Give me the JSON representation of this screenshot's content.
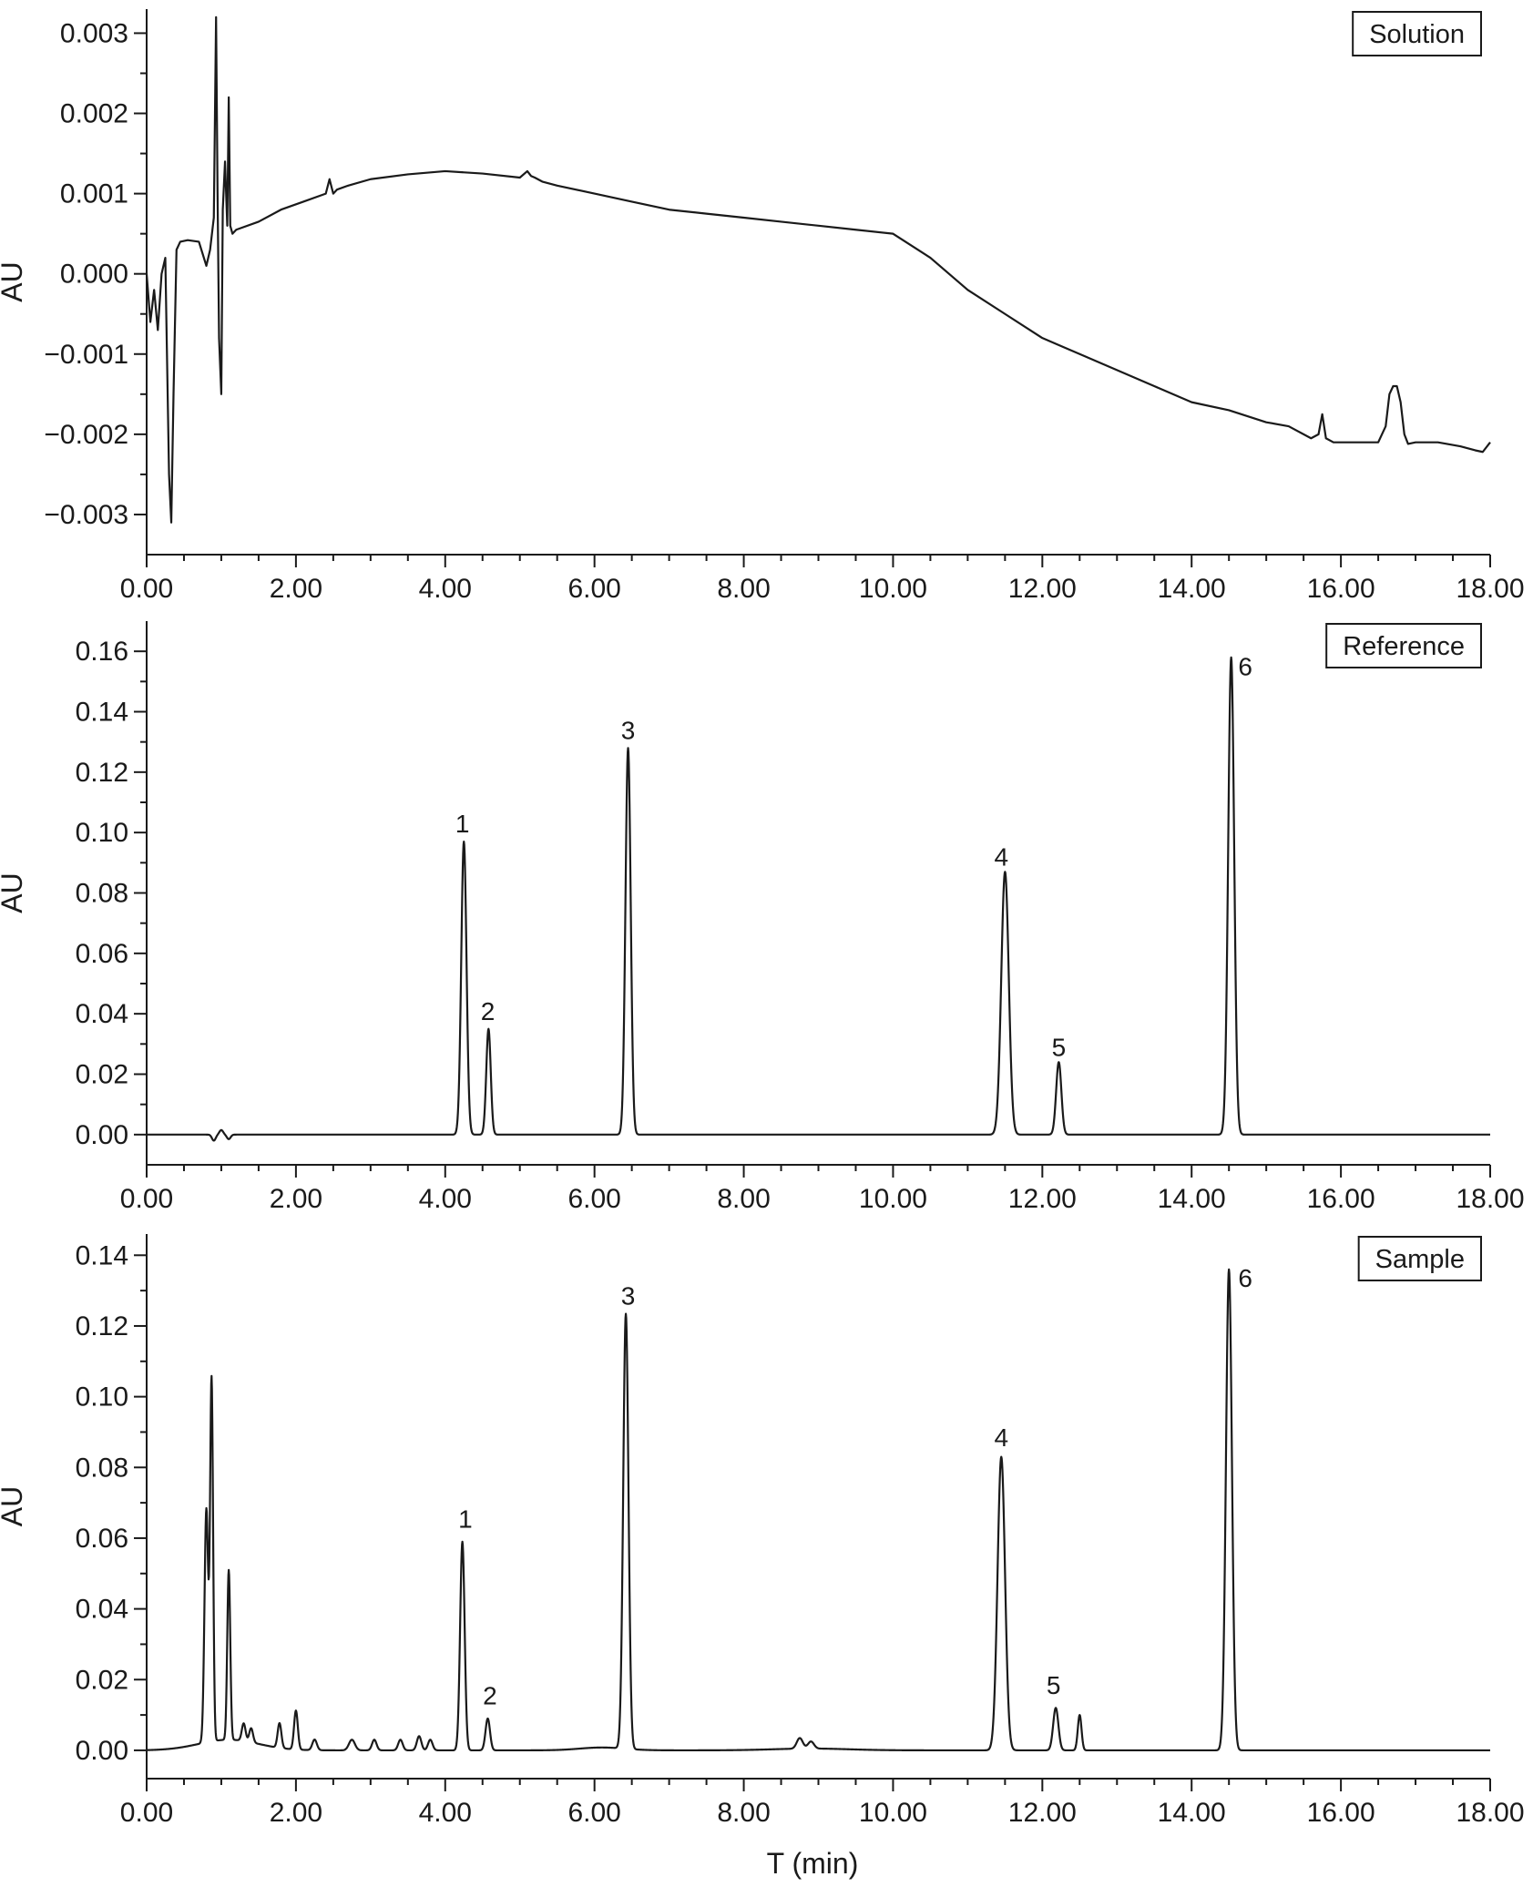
{
  "figure": {
    "xlabel": "T (min)",
    "colors": {
      "trace": "#1a1a1a",
      "axis": "#1a1a1a",
      "background": "#ffffff"
    }
  },
  "chart_data": [
    {
      "type": "line",
      "panel": "Solution",
      "legend": "Solution",
      "legend_position": "top-right",
      "ylabel": "AU",
      "xlim": [
        0,
        18
      ],
      "ylim": [
        -0.0035,
        0.0033
      ],
      "x_ticks": [
        0,
        2,
        4,
        6,
        8,
        10,
        12,
        14,
        16,
        18
      ],
      "x_tick_labels": [
        "0.00",
        "2.00",
        "4.00",
        "6.00",
        "8.00",
        "10.00",
        "12.00",
        "14.00",
        "16.00",
        "18.00"
      ],
      "y_ticks": [
        0.003,
        0.002,
        0.001,
        0.0,
        -0.001,
        -0.002,
        -0.003
      ],
      "y_tick_labels": [
        "0.003",
        "0.002",
        "0.001",
        "0.000",
        "−0.001",
        "−0.002",
        "−0.003"
      ],
      "series": [
        {
          "name": "Solution",
          "x": [
            0.0,
            0.05,
            0.1,
            0.15,
            0.2,
            0.25,
            0.3,
            0.33,
            0.36,
            0.4,
            0.45,
            0.55,
            0.7,
            0.8,
            0.85,
            0.9,
            0.93,
            0.95,
            0.97,
            1.0,
            1.02,
            1.05,
            1.08,
            1.1,
            1.12,
            1.15,
            1.2,
            1.5,
            1.8,
            2.1,
            2.4,
            2.45,
            2.5,
            2.55,
            2.7,
            3.0,
            3.5,
            4.0,
            4.5,
            5.0,
            5.1,
            5.15,
            5.2,
            5.3,
            5.5,
            6.0,
            6.5,
            7.0,
            7.5,
            8.0,
            8.5,
            9.0,
            9.5,
            10.0,
            10.5,
            11.0,
            11.5,
            12.0,
            12.5,
            13.0,
            13.5,
            14.0,
            14.5,
            15.0,
            15.3,
            15.6,
            15.7,
            15.75,
            15.8,
            15.9,
            16.0,
            16.3,
            16.5,
            16.6,
            16.65,
            16.7,
            16.75,
            16.8,
            16.85,
            16.9,
            17.0,
            17.3,
            17.6,
            17.8,
            17.9,
            18.0
          ],
          "y": [
            0.0,
            -0.0006,
            -0.0002,
            -0.0007,
            0.0,
            0.0002,
            -0.0025,
            -0.0031,
            -0.0015,
            0.0003,
            0.0004,
            0.00042,
            0.0004,
            0.0001,
            0.0003,
            0.0007,
            0.0032,
            0.001,
            -0.0008,
            -0.0015,
            0.0008,
            0.0014,
            0.0006,
            0.0022,
            0.0006,
            0.0005,
            0.00055,
            0.00065,
            0.0008,
            0.0009,
            0.001,
            0.00118,
            0.001,
            0.00105,
            0.0011,
            0.00118,
            0.00124,
            0.00128,
            0.00125,
            0.0012,
            0.00128,
            0.00122,
            0.0012,
            0.00115,
            0.0011,
            0.001,
            0.0009,
            0.0008,
            0.00075,
            0.0007,
            0.00065,
            0.0006,
            0.00055,
            0.0005,
            0.0002,
            -0.0002,
            -0.0005,
            -0.0008,
            -0.001,
            -0.0012,
            -0.0014,
            -0.0016,
            -0.0017,
            -0.00185,
            -0.0019,
            -0.00205,
            -0.002,
            -0.00175,
            -0.00205,
            -0.0021,
            -0.0021,
            -0.0021,
            -0.0021,
            -0.0019,
            -0.0015,
            -0.0014,
            -0.0014,
            -0.0016,
            -0.002,
            -0.00212,
            -0.0021,
            -0.0021,
            -0.00215,
            -0.0022,
            -0.00222,
            -0.0021
          ]
        }
      ]
    },
    {
      "type": "line",
      "panel": "Reference",
      "legend": "Reference",
      "legend_position": "top-right",
      "ylabel": "AU",
      "xlim": [
        0,
        18
      ],
      "ylim": [
        -0.01,
        0.17
      ],
      "x_ticks": [
        0,
        2,
        4,
        6,
        8,
        10,
        12,
        14,
        16,
        18
      ],
      "x_tick_labels": [
        "0.00",
        "2.00",
        "4.00",
        "6.00",
        "8.00",
        "10.00",
        "12.00",
        "14.00",
        "16.00",
        "18.00"
      ],
      "y_ticks": [
        0.16,
        0.14,
        0.12,
        0.1,
        0.08,
        0.06,
        0.04,
        0.02,
        0.0
      ],
      "y_tick_labels": [
        "0.16",
        "0.14",
        "0.12",
        "0.10",
        "0.08",
        "0.06",
        "0.04",
        "0.02",
        "0.00"
      ],
      "series": [
        {
          "name": "Reference",
          "baseline": 0.0,
          "ripples": [
            [
              0.9,
              -0.002,
              0.025
            ],
            [
              1.0,
              0.0015,
              0.025
            ],
            [
              1.1,
              -0.0015,
              0.025
            ]
          ],
          "peaks": [
            {
              "label": "1",
              "rt": 4.25,
              "height": 0.097,
              "width": 0.035
            },
            {
              "label": "2",
              "rt": 4.58,
              "height": 0.035,
              "width": 0.03
            },
            {
              "label": "3",
              "rt": 6.45,
              "height": 0.128,
              "width": 0.035
            },
            {
              "label": "4",
              "rt": 11.5,
              "height": 0.087,
              "width": 0.05
            },
            {
              "label": "5",
              "rt": 12.22,
              "height": 0.024,
              "width": 0.035
            },
            {
              "label": "6",
              "rt": 14.53,
              "height": 0.158,
              "width": 0.04
            }
          ]
        }
      ],
      "annotations": [
        {
          "text": "1",
          "x": 4.23,
          "y": 0.1
        },
        {
          "text": "2",
          "x": 4.57,
          "y": 0.038
        },
        {
          "text": "3",
          "x": 6.45,
          "y": 0.131
        },
        {
          "text": "4",
          "x": 11.45,
          "y": 0.089
        },
        {
          "text": "5",
          "x": 12.22,
          "y": 0.026
        },
        {
          "text": "6",
          "x": 14.72,
          "y": 0.152
        }
      ]
    },
    {
      "type": "line",
      "panel": "Sample",
      "legend": "Sample",
      "legend_position": "top-right",
      "ylabel": "AU",
      "xlim": [
        0,
        18
      ],
      "ylim": [
        -0.008,
        0.146
      ],
      "x_ticks": [
        0,
        2,
        4,
        6,
        8,
        10,
        12,
        14,
        16,
        18
      ],
      "x_tick_labels": [
        "0.00",
        "2.00",
        "4.00",
        "6.00",
        "8.00",
        "10.00",
        "12.00",
        "14.00",
        "16.00",
        "18.00"
      ],
      "y_ticks": [
        0.14,
        0.12,
        0.1,
        0.08,
        0.06,
        0.04,
        0.02,
        0.0
      ],
      "y_tick_labels": [
        "0.14",
        "0.12",
        "0.10",
        "0.08",
        "0.06",
        "0.04",
        "0.02",
        "0.00"
      ],
      "series": [
        {
          "name": "Sample",
          "baseline": 0.0,
          "bumps": [
            [
              1.1,
              0.003,
              0.4
            ],
            [
              6.1,
              0.0008,
              0.3
            ],
            [
              8.9,
              0.0005,
              0.5
            ]
          ],
          "peaks": [
            {
              "label": "",
              "rt": 0.8,
              "height": 0.066,
              "width": 0.025
            },
            {
              "label": "",
              "rt": 0.87,
              "height": 0.102,
              "width": 0.02
            },
            {
              "label": "",
              "rt": 1.1,
              "height": 0.048,
              "width": 0.02
            },
            {
              "label": "",
              "rt": 1.3,
              "height": 0.005,
              "width": 0.025
            },
            {
              "label": "",
              "rt": 1.4,
              "height": 0.004,
              "width": 0.025
            },
            {
              "label": "",
              "rt": 1.78,
              "height": 0.007,
              "width": 0.025
            },
            {
              "label": "",
              "rt": 2.0,
              "height": 0.011,
              "width": 0.025
            },
            {
              "label": "",
              "rt": 2.25,
              "height": 0.003,
              "width": 0.03
            },
            {
              "label": "",
              "rt": 2.75,
              "height": 0.003,
              "width": 0.04
            },
            {
              "label": "",
              "rt": 3.05,
              "height": 0.003,
              "width": 0.03
            },
            {
              "label": "",
              "rt": 3.4,
              "height": 0.003,
              "width": 0.03
            },
            {
              "label": "",
              "rt": 3.65,
              "height": 0.004,
              "width": 0.03
            },
            {
              "label": "",
              "rt": 3.8,
              "height": 0.003,
              "width": 0.03
            },
            {
              "label": "1",
              "rt": 4.23,
              "height": 0.059,
              "width": 0.03
            },
            {
              "label": "2",
              "rt": 4.57,
              "height": 0.009,
              "width": 0.03
            },
            {
              "label": "3",
              "rt": 6.42,
              "height": 0.123,
              "width": 0.035
            },
            {
              "label": "",
              "rt": 8.75,
              "height": 0.003,
              "width": 0.04
            },
            {
              "label": "",
              "rt": 8.9,
              "height": 0.002,
              "width": 0.04
            },
            {
              "label": "4",
              "rt": 11.45,
              "height": 0.083,
              "width": 0.05
            },
            {
              "label": "5",
              "rt": 12.18,
              "height": 0.012,
              "width": 0.035
            },
            {
              "label": "",
              "rt": 12.5,
              "height": 0.01,
              "width": 0.025
            },
            {
              "label": "6",
              "rt": 14.5,
              "height": 0.136,
              "width": 0.04
            }
          ]
        }
      ],
      "annotations": [
        {
          "text": "1",
          "x": 4.27,
          "y": 0.063
        },
        {
          "text": "2",
          "x": 4.6,
          "y": 0.013
        },
        {
          "text": "3",
          "x": 6.45,
          "y": 0.126
        },
        {
          "text": "4",
          "x": 11.45,
          "y": 0.086
        },
        {
          "text": "5",
          "x": 12.15,
          "y": 0.016
        },
        {
          "text": "6",
          "x": 14.72,
          "y": 0.131
        }
      ]
    }
  ]
}
